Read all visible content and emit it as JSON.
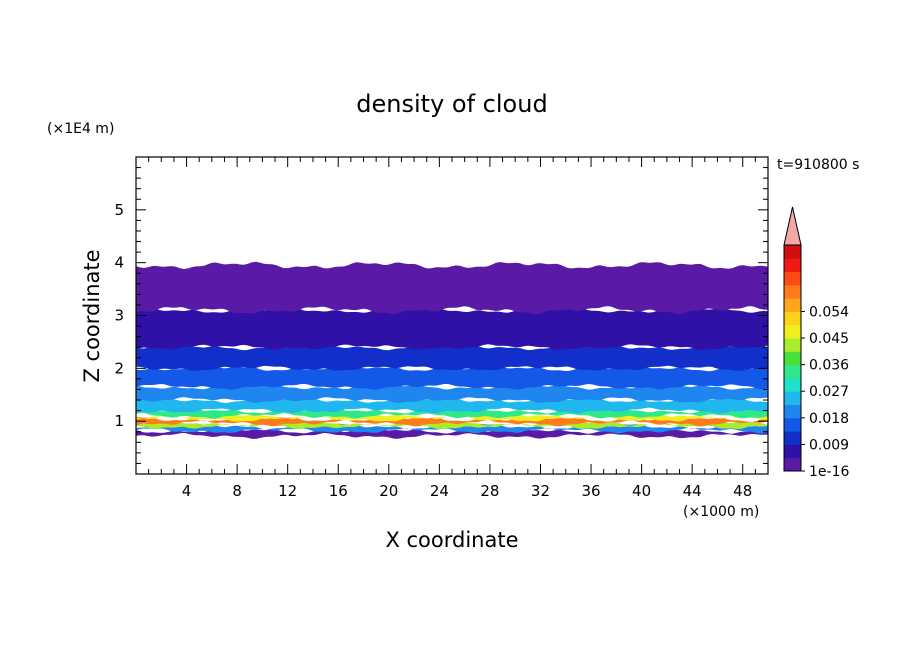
{
  "chart_data": {
    "type": "heatmap",
    "title": "density of cloud",
    "xlabel": "X coordinate",
    "ylabel": "Z coordinate",
    "x_unit": "(×1000 m)",
    "y_unit": "(×1E4 m)",
    "time_label": "t=910800 s",
    "xlim": [
      0,
      50
    ],
    "ylim": [
      0,
      6
    ],
    "x_ticks": [
      4,
      8,
      12,
      16,
      20,
      24,
      28,
      32,
      36,
      40,
      44,
      48
    ],
    "y_ticks": [
      1,
      2,
      3,
      4,
      5
    ],
    "grid": false,
    "colorbar": {
      "labels": [
        "1e-16",
        "0.009",
        "0.018",
        "0.027",
        "0.036",
        "0.045",
        "0.054"
      ],
      "colors": [
        "#5a1aa6",
        "#2f11a8",
        "#1230c9",
        "#1358e6",
        "#1f86f0",
        "#20b6ee",
        "#1fe0c8",
        "#2fe88a",
        "#4ade3a",
        "#a8ec2a",
        "#f0f020",
        "#ffd21a",
        "#ffa51a",
        "#ff7a1a",
        "#ff4a14",
        "#ee1a14",
        "#d10f10"
      ],
      "extend_color": "#f4a8a8"
    },
    "layers": [
      {
        "z_bottom": 0.72,
        "z_top": 0.82,
        "color": "#5a1aa6"
      },
      {
        "z_bottom": 0.82,
        "z_top": 0.9,
        "color": "#1f86f0"
      },
      {
        "z_bottom": 0.9,
        "z_top": 0.96,
        "color": "#a8ec2a"
      },
      {
        "z_bottom": 0.96,
        "z_top": 1.04,
        "color": "#ff7a1a"
      },
      {
        "z_bottom": 1.04,
        "z_top": 1.1,
        "color": "#f0f020"
      },
      {
        "z_bottom": 1.1,
        "z_top": 1.2,
        "color": "#2fe88a"
      },
      {
        "z_bottom": 1.2,
        "z_top": 1.4,
        "color": "#20b6ee"
      },
      {
        "z_bottom": 1.4,
        "z_top": 1.65,
        "color": "#1f86f0"
      },
      {
        "z_bottom": 1.65,
        "z_top": 2.0,
        "color": "#1358e6"
      },
      {
        "z_bottom": 2.0,
        "z_top": 2.4,
        "color": "#1230c9"
      },
      {
        "z_bottom": 2.4,
        "z_top": 3.1,
        "color": "#2f11a8"
      },
      {
        "z_bottom": 3.1,
        "z_top": 3.95,
        "color": "#5a1aa6"
      }
    ]
  }
}
